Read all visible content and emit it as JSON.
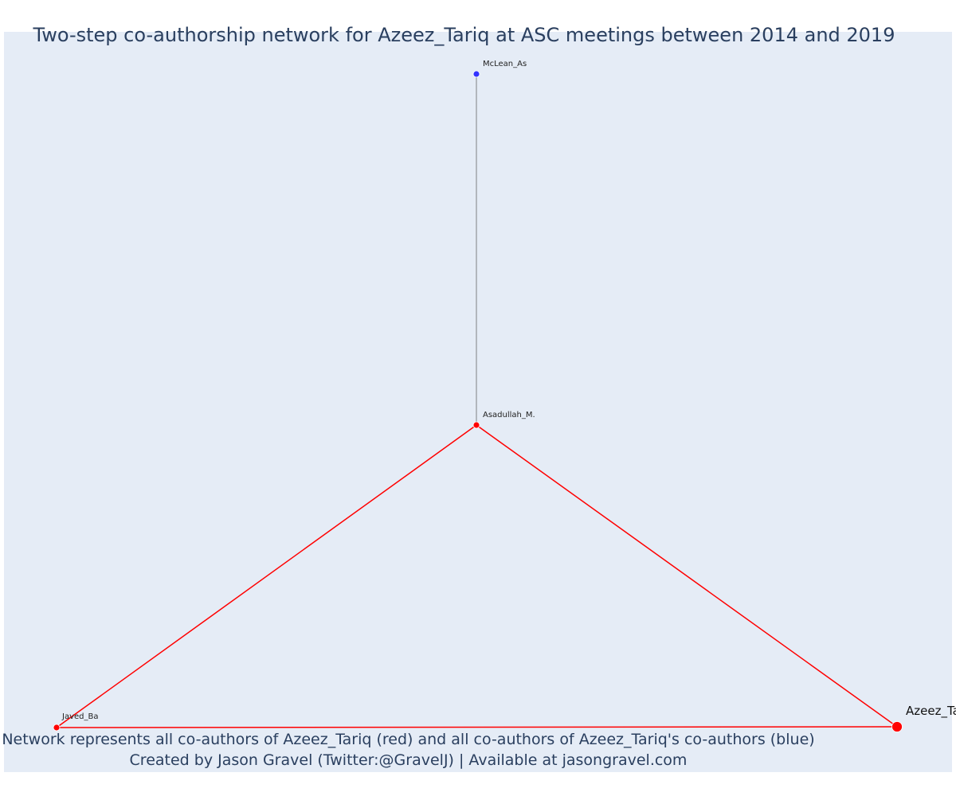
{
  "title": "Two-step co-authorship network for Azeez_Tariq at ASC meetings between 2014 and 2019",
  "caption": {
    "line1": "Network represents all co-authors of Azeez_Tariq (red) and all co-authors of Azeez_Tariq's co-authors (blue)",
    "line2": "Created by Jason Gravel (Twitter:@GravelJ) | Available at jasongravel.com"
  },
  "colors": {
    "plot_background": "#e5ecf6",
    "coauthor_red": "#ff0000",
    "second_step_blue": "#3333ff",
    "edge_gray": "#666666"
  },
  "nodes": [
    {
      "id": "McLean_As",
      "label": "McLean_As",
      "group": "second-step"
    },
    {
      "id": "Asadullah_M.",
      "label": "Asadullah_M.",
      "group": "co-author"
    },
    {
      "id": "Javed_Ba",
      "label": "Javed_Ba",
      "group": "co-author"
    },
    {
      "id": "Azeez_Tariq",
      "label": "Azeez_Ta",
      "group": "focal"
    }
  ],
  "edges": [
    {
      "source": "McLean_As",
      "target": "Asadullah_M.",
      "type": "second-step"
    },
    {
      "source": "Asadullah_M.",
      "target": "Javed_Ba",
      "type": "co-author"
    },
    {
      "source": "Asadullah_M.",
      "target": "Azeez_Tariq",
      "type": "co-author"
    },
    {
      "source": "Javed_Ba",
      "target": "Azeez_Tariq",
      "type": "co-author"
    }
  ]
}
